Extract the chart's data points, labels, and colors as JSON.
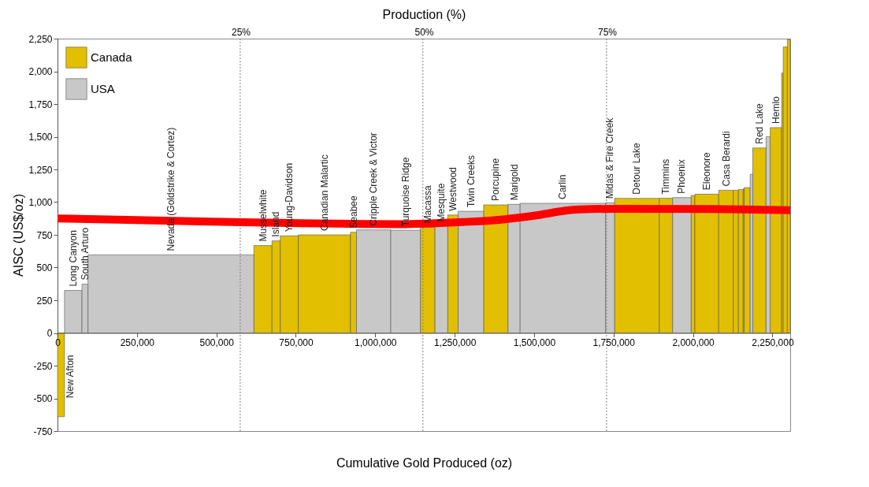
{
  "chart_data": {
    "type": "histogram",
    "xlabel": "Cumulative Gold Produced (oz)",
    "ylabel": "AISC (US$/oz)",
    "x2label": "Production (%)",
    "bins": [
      0,
      22000,
      77000,
      96000,
      618000,
      675000,
      701000,
      758000,
      922000,
      941000,
      1049000,
      1142000,
      1188000,
      1228000,
      1261000,
      1341000,
      1418000,
      1456000,
      1725000,
      1753000,
      1894000,
      1936000,
      1994000,
      2006000,
      2081000,
      2127000,
      2143000,
      2158000,
      2161000,
      2180000,
      2188000,
      2230000,
      2243000,
      2279000,
      2284000,
      2297000,
      2306000
    ],
    "series": [
      {
        "name": "Canada",
        "color": "#e2bf00",
        "values": [
          -640,
          null,
          null,
          null,
          668,
          704,
          742,
          750,
          770,
          null,
          null,
          808,
          null,
          902,
          null,
          979,
          null,
          null,
          null,
          1029,
          1030,
          null,
          1051,
          1061,
          1091,
          1091,
          1097,
          1101,
          1111,
          null,
          1414,
          null,
          1570,
          1987,
          2186,
          2242
        ]
      },
      {
        "name": "USA",
        "color": "#c8c8c8",
        "values": [
          null,
          325,
          373,
          597,
          null,
          null,
          null,
          null,
          null,
          788,
          785,
          null,
          820,
          null,
          930,
          null,
          983,
          991,
          995,
          null,
          null,
          1035,
          null,
          null,
          null,
          null,
          null,
          null,
          null,
          1213,
          null,
          1500,
          null,
          null,
          null,
          null
        ]
      },
      {
        "type": "line",
        "color": "#ff0000",
        "x": [
          0,
          617000,
          1079000,
          1177000,
          1276000,
          1374000,
          1423000,
          1521000,
          1595000,
          1644000,
          1767000,
          2062000,
          2306000
        ],
        "values": [
          875,
          845,
          832,
          838,
          848,
          862,
          874,
          904,
          934,
          944,
          949,
          947,
          938
        ]
      }
    ],
    "xlim": [
      0,
      2306000
    ],
    "xticks": [
      0,
      {
        "value": 250000,
        "label": "250,000"
      },
      {
        "value": 500000,
        "label": "500,000"
      },
      {
        "value": 750000,
        "label": "750,000"
      },
      {
        "value": 1000000,
        "label": "1,000,000"
      },
      {
        "value": 1250000,
        "label": "1,250,000"
      },
      {
        "value": 1500000,
        "label": "1,500,000"
      },
      {
        "value": 1750000,
        "label": "1,750,000"
      },
      {
        "value": 2000000,
        "label": "2,000,000"
      },
      {
        "value": 2250000,
        "label": "2,250,000"
      }
    ],
    "ylim": [
      -750,
      2250
    ],
    "yticks": [
      -750,
      -500,
      -250,
      0,
      250,
      500,
      750,
      {
        "value": 1000,
        "label": "1,000"
      },
      {
        "value": 1250,
        "label": "1,250"
      },
      {
        "value": 1500,
        "label": "1,500"
      },
      {
        "value": 1750,
        "label": "1,750"
      },
      {
        "value": 2000,
        "label": "2,000"
      },
      {
        "value": 2250,
        "label": "2,250"
      }
    ],
    "x2lim": [
      0,
      100
    ],
    "x2ticks": [
      {
        "value": 25,
        "label": "25%"
      },
      {
        "value": 50,
        "label": "50%"
      },
      {
        "value": 75,
        "label": "75%"
      }
    ],
    "ref_lines": [
      {
        "axis": "x",
        "value": 575000,
        "color": "#808080",
        "line_style": "dotted"
      },
      {
        "axis": "x",
        "value": 1150000,
        "color": "#808080",
        "line_style": "dotted"
      },
      {
        "axis": "x",
        "value": 1728000,
        "color": "#808080",
        "line_style": "dotted"
      }
    ],
    "legend": "top left",
    "categories": [
      "New Afton",
      "Long Canyon",
      "South Arturo",
      "Nevada (Goldstrike & Cortez)",
      "Musselwhite",
      "Island",
      "Young-Davidson",
      "Canadian Malartic",
      "Seabee",
      "Cripple Creek & Victor",
      "Turquoise Ridge",
      "Macassa",
      "Mesquite",
      "Westwood",
      "Twin Creeks",
      "Porcupine",
      "Marigold",
      "Carlin",
      "Midas & Fire Creek",
      "Detour Lake",
      "Timmins",
      "Phoenix",
      null,
      "Eleonore",
      "Casa Berardi",
      null,
      null,
      null,
      null,
      null,
      "Red Lake",
      null,
      "Hemlo",
      null,
      null,
      null
    ]
  }
}
